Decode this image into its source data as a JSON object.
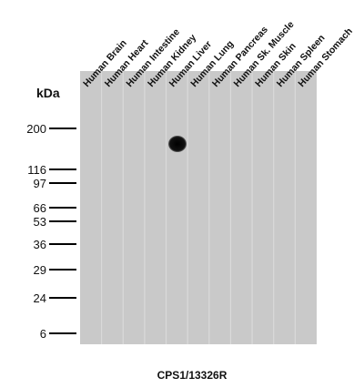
{
  "lanes": [
    "Human Brain",
    "Human Heart",
    "Human Intestine",
    "Human Kidney",
    "Human Liver",
    "Human Lung",
    "Human Pancreas",
    "Human Sk. Muscle",
    "Human Skin",
    "Human Spleen",
    "Human Stomach"
  ],
  "unit_label": "kDa",
  "markers": [
    "200",
    "116",
    "97",
    "66",
    "53",
    "36",
    "29",
    "24",
    "6"
  ],
  "antibody": "CPS1/13326R"
}
